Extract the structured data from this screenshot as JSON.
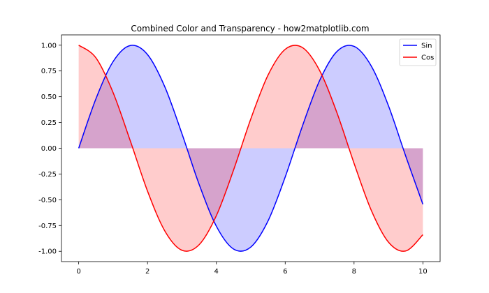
{
  "chart_data": {
    "type": "area",
    "title": "Combined Color and Transparency - how2matplotlib.com",
    "xlabel": "",
    "ylabel": "",
    "xlim": [
      -0.5,
      10.5
    ],
    "ylim": [
      -1.1,
      1.1
    ],
    "x_ticks": [
      0,
      2,
      4,
      6,
      8,
      10
    ],
    "y_ticks": [
      -1.0,
      -0.75,
      -0.5,
      -0.25,
      0.0,
      0.25,
      0.5,
      0.75,
      1.0
    ],
    "x_tick_labels": [
      "0",
      "2",
      "4",
      "6",
      "8",
      "10"
    ],
    "y_tick_labels": [
      "-1.00",
      "-0.75",
      "-0.50",
      "-0.25",
      "0.00",
      "0.25",
      "0.50",
      "0.75",
      "1.00"
    ],
    "grid": false,
    "legend": {
      "placement": "top-right",
      "entries": [
        "Sin",
        "Cos"
      ]
    },
    "x": [
      0,
      0.5,
      1,
      1.5,
      2,
      2.5,
      3,
      3.5,
      4,
      4.5,
      5,
      5.5,
      6,
      6.5,
      7,
      7.5,
      8,
      8.5,
      9,
      9.5,
      10
    ],
    "series": [
      {
        "name": "Sin",
        "color": "#0000ff",
        "fill_color": "#0000ff",
        "fill_alpha": 0.2,
        "values": [
          0.0,
          0.479,
          0.841,
          0.997,
          0.909,
          0.598,
          0.141,
          -0.351,
          -0.757,
          -0.978,
          -0.959,
          -0.706,
          -0.279,
          0.215,
          0.657,
          0.938,
          0.989,
          0.798,
          0.412,
          -0.075,
          -0.544
        ]
      },
      {
        "name": "Cos",
        "color": "#ff0000",
        "fill_color": "#ff0000",
        "fill_alpha": 0.2,
        "values": [
          1.0,
          0.878,
          0.54,
          0.071,
          -0.416,
          -0.801,
          -0.99,
          -0.936,
          -0.654,
          -0.211,
          0.284,
          0.709,
          0.96,
          0.977,
          0.754,
          0.347,
          -0.146,
          -0.602,
          -0.911,
          -0.997,
          -0.839
        ]
      }
    ]
  }
}
